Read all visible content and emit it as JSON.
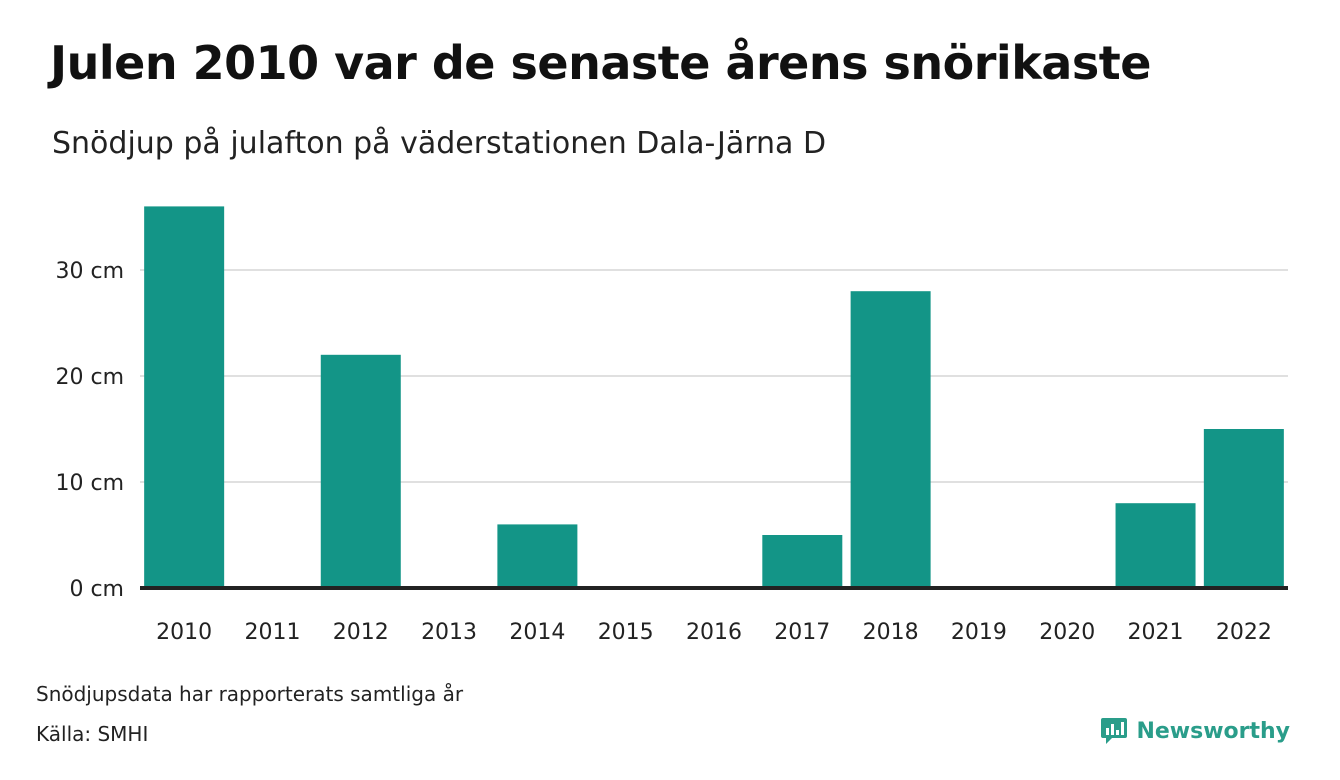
{
  "header": {
    "title": "Julen 2010 var de senaste årens snörikaste",
    "subtitle": "Snödjup på julafton på väderstationen Dala-Järna D"
  },
  "footer": {
    "note": "Snödjupsdata har rapporterats samtliga år",
    "source": "Källa: SMHI",
    "brand": "Newsworthy"
  },
  "colors": {
    "bar": "#139587",
    "grid": "#e0e0e0",
    "baseline": "#222222",
    "brand": "#2a9d8a"
  },
  "chart_data": {
    "type": "bar",
    "categories": [
      "2010",
      "2011",
      "2012",
      "2013",
      "2014",
      "2015",
      "2016",
      "2017",
      "2018",
      "2019",
      "2020",
      "2021",
      "2022"
    ],
    "values": [
      36,
      0,
      22,
      0,
      6,
      0,
      0,
      5,
      28,
      0,
      0,
      8,
      15
    ],
    "ylim": [
      0,
      36
    ],
    "yticks": [
      0,
      10,
      20,
      30
    ],
    "ytick_labels": [
      "0 cm",
      "10 cm",
      "20 cm",
      "30 cm"
    ],
    "grid": true
  }
}
